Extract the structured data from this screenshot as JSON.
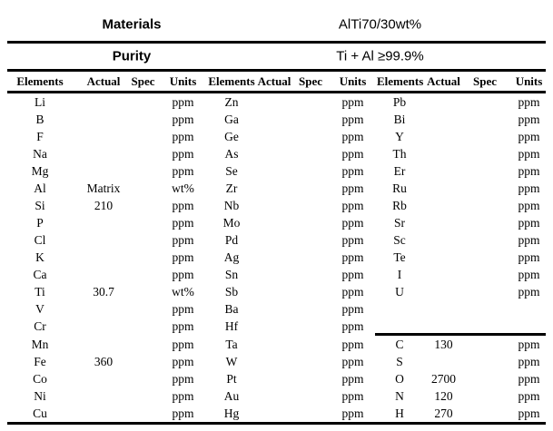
{
  "document": {
    "title_rows": [
      {
        "label": "Materials",
        "value": "AlTi70/30wt%"
      },
      {
        "label": "Purity",
        "value": "Ti + Al ≥99.9%"
      }
    ],
    "column_headers": [
      "Elements",
      "Actual",
      "Spec",
      "Units"
    ]
  },
  "table": {
    "groups": [
      {
        "name": "group-1",
        "rows": [
          {
            "el": "Li",
            "actual": "",
            "spec": "",
            "units": "ppm"
          },
          {
            "el": "B",
            "actual": "",
            "spec": "",
            "units": "ppm"
          },
          {
            "el": "F",
            "actual": "",
            "spec": "",
            "units": "ppm"
          },
          {
            "el": "Na",
            "actual": "",
            "spec": "",
            "units": "ppm"
          },
          {
            "el": "Mg",
            "actual": "",
            "spec": "",
            "units": "ppm"
          },
          {
            "el": "Al",
            "actual": "Matrix",
            "spec": "",
            "units": "wt%"
          },
          {
            "el": "Si",
            "actual": "210",
            "spec": "",
            "units": "ppm"
          },
          {
            "el": "P",
            "actual": "",
            "spec": "",
            "units": "ppm"
          },
          {
            "el": "Cl",
            "actual": "",
            "spec": "",
            "units": "ppm"
          },
          {
            "el": "K",
            "actual": "",
            "spec": "",
            "units": "ppm"
          },
          {
            "el": "Ca",
            "actual": "",
            "spec": "",
            "units": "ppm"
          },
          {
            "el": "Ti",
            "actual": "30.7",
            "spec": "",
            "units": "wt%"
          },
          {
            "el": "V",
            "actual": "",
            "spec": "",
            "units": "ppm"
          },
          {
            "el": "Cr",
            "actual": "",
            "spec": "",
            "units": "ppm"
          },
          {
            "el": "Mn",
            "actual": "",
            "spec": "",
            "units": "ppm"
          },
          {
            "el": "Fe",
            "actual": "360",
            "spec": "",
            "units": "ppm"
          },
          {
            "el": "Co",
            "actual": "",
            "spec": "",
            "units": "ppm"
          },
          {
            "el": "Ni",
            "actual": "",
            "spec": "",
            "units": "ppm"
          },
          {
            "el": "Cu",
            "actual": "",
            "spec": "",
            "units": "ppm"
          }
        ]
      },
      {
        "name": "group-2",
        "rows": [
          {
            "el": "Zn",
            "actual": "",
            "spec": "",
            "units": "ppm"
          },
          {
            "el": "Ga",
            "actual": "",
            "spec": "",
            "units": "ppm"
          },
          {
            "el": "Ge",
            "actual": "",
            "spec": "",
            "units": "ppm"
          },
          {
            "el": "As",
            "actual": "",
            "spec": "",
            "units": "ppm"
          },
          {
            "el": "Se",
            "actual": "",
            "spec": "",
            "units": "ppm"
          },
          {
            "el": "Zr",
            "actual": "",
            "spec": "",
            "units": "ppm"
          },
          {
            "el": "Nb",
            "actual": "",
            "spec": "",
            "units": "ppm"
          },
          {
            "el": "Mo",
            "actual": "",
            "spec": "",
            "units": "ppm"
          },
          {
            "el": "Pd",
            "actual": "",
            "spec": "",
            "units": "ppm"
          },
          {
            "el": "Ag",
            "actual": "",
            "spec": "",
            "units": "ppm"
          },
          {
            "el": "Sn",
            "actual": "",
            "spec": "",
            "units": "ppm"
          },
          {
            "el": "Sb",
            "actual": "",
            "spec": "",
            "units": "ppm"
          },
          {
            "el": "Ba",
            "actual": "",
            "spec": "",
            "units": "ppm"
          },
          {
            "el": "Hf",
            "actual": "",
            "spec": "",
            "units": "ppm"
          },
          {
            "el": "Ta",
            "actual": "",
            "spec": "",
            "units": "ppm"
          },
          {
            "el": "W",
            "actual": "",
            "spec": "",
            "units": "ppm"
          },
          {
            "el": "Pt",
            "actual": "",
            "spec": "",
            "units": "ppm"
          },
          {
            "el": "Au",
            "actual": "",
            "spec": "",
            "units": "ppm"
          },
          {
            "el": "Hg",
            "actual": "",
            "spec": "",
            "units": "ppm"
          }
        ]
      },
      {
        "name": "group-3",
        "divider_above_row": 14,
        "rows": [
          {
            "el": "Pb",
            "actual": "",
            "spec": "",
            "units": "ppm"
          },
          {
            "el": "Bi",
            "actual": "",
            "spec": "",
            "units": "ppm"
          },
          {
            "el": "Y",
            "actual": "",
            "spec": "",
            "units": "ppm"
          },
          {
            "el": "Th",
            "actual": "",
            "spec": "",
            "units": "ppm"
          },
          {
            "el": "Er",
            "actual": "",
            "spec": "",
            "units": "ppm"
          },
          {
            "el": "Ru",
            "actual": "",
            "spec": "",
            "units": "ppm"
          },
          {
            "el": "Rb",
            "actual": "",
            "spec": "",
            "units": "ppm"
          },
          {
            "el": "Sr",
            "actual": "",
            "spec": "",
            "units": "ppm"
          },
          {
            "el": "Sc",
            "actual": "",
            "spec": "",
            "units": "ppm"
          },
          {
            "el": "Te",
            "actual": "",
            "spec": "",
            "units": "ppm"
          },
          {
            "el": "I",
            "actual": "",
            "spec": "",
            "units": "ppm"
          },
          {
            "el": "U",
            "actual": "",
            "spec": "",
            "units": "ppm"
          },
          {
            "el": "",
            "actual": "",
            "spec": "",
            "units": ""
          },
          {
            "el": "",
            "actual": "",
            "spec": "",
            "units": ""
          },
          {
            "el": "C",
            "actual": "130",
            "spec": "",
            "units": "ppm"
          },
          {
            "el": "S",
            "actual": "",
            "spec": "",
            "units": "ppm"
          },
          {
            "el": "O",
            "actual": "2700",
            "spec": "",
            "units": "ppm"
          },
          {
            "el": "N",
            "actual": "120",
            "spec": "",
            "units": "ppm"
          },
          {
            "el": "H",
            "actual": "270",
            "spec": "",
            "units": "ppm"
          }
        ]
      }
    ]
  }
}
